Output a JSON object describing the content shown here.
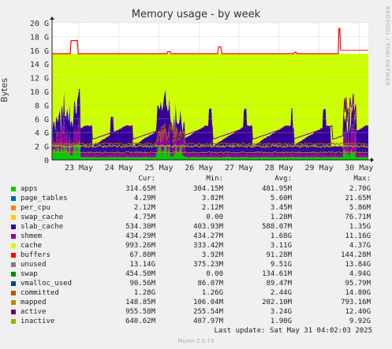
{
  "chart_data": {
    "type": "area",
    "title": "Memory usage - by week",
    "ylabel": "Bytes",
    "ylim": [
      0,
      20
    ],
    "yticks": [
      "0",
      "2 G",
      "4 G",
      "6 G",
      "8 G",
      "10 G",
      "12 G",
      "14 G",
      "16 G",
      "18 G",
      "20 G"
    ],
    "xticks": [
      "23 May",
      "24 May",
      "25 May",
      "26 May",
      "27 May",
      "28 May",
      "29 May",
      "30 May"
    ],
    "grid": true,
    "series": [
      {
        "name": "apps",
        "color": "#00cc00"
      },
      {
        "name": "page_tables",
        "color": "#0066b3"
      },
      {
        "name": "per_cpu",
        "color": "#ff8000"
      },
      {
        "name": "swap_cache",
        "color": "#ffcc00"
      },
      {
        "name": "slab_cache",
        "color": "#330099"
      },
      {
        "name": "shmem",
        "color": "#990099"
      },
      {
        "name": "cache",
        "color": "#ccff00"
      },
      {
        "name": "buffers",
        "color": "#ff0000"
      },
      {
        "name": "unused",
        "color": "#808080"
      },
      {
        "name": "swap",
        "color": "#008f00"
      },
      {
        "name": "vmalloc_used",
        "color": "#00487d"
      },
      {
        "name": "committed",
        "color": "#b35a00"
      },
      {
        "name": "mapped",
        "color": "#b38f00"
      },
      {
        "name": "active",
        "color": "#6b006b"
      },
      {
        "name": "inactive",
        "color": "#8fb300"
      }
    ]
  },
  "side_text": "RRDTOOL / TOBI OETIKER",
  "legend": {
    "headers": {
      "cur": "Cur:",
      "min": "Min:",
      "avg": "Avg:",
      "max": "Max:"
    },
    "rows": [
      {
        "name": "apps",
        "cur": "314.65M",
        "min": "304.15M",
        "avg": "481.95M",
        "max": "2.70G",
        "color": "#00cc00"
      },
      {
        "name": "page_tables",
        "cur": "4.29M",
        "min": "3.82M",
        "avg": "5.60M",
        "max": "21.65M",
        "color": "#0066b3"
      },
      {
        "name": "per_cpu",
        "cur": "2.12M",
        "min": "2.12M",
        "avg": "3.45M",
        "max": "5.86M",
        "color": "#ff8000"
      },
      {
        "name": "swap_cache",
        "cur": "4.75M",
        "min": "0.00",
        "avg": "1.28M",
        "max": "76.71M",
        "color": "#ffcc00"
      },
      {
        "name": "slab_cache",
        "cur": "534.30M",
        "min": "403.93M",
        "avg": "588.07M",
        "max": "1.35G",
        "color": "#330099"
      },
      {
        "name": "shmem",
        "cur": "434.29M",
        "min": "434.27M",
        "avg": "1.68G",
        "max": "11.16G",
        "color": "#990099"
      },
      {
        "name": "cache",
        "cur": "993.26M",
        "min": "333.42M",
        "avg": "3.11G",
        "max": "4.37G",
        "color": "#ccff00"
      },
      {
        "name": "buffers",
        "cur": "67.80M",
        "min": "3.92M",
        "avg": "91.28M",
        "max": "144.28M",
        "color": "#ff0000"
      },
      {
        "name": "unused",
        "cur": "13.14G",
        "min": "375.23M",
        "avg": "9.51G",
        "max": "13.84G",
        "color": "#808080"
      },
      {
        "name": "swap",
        "cur": "454.50M",
        "min": "0.00",
        "avg": "134.61M",
        "max": "4.94G",
        "color": "#008f00"
      },
      {
        "name": "vmalloc_used",
        "cur": "90.56M",
        "min": "86.07M",
        "avg": "89.47M",
        "max": "95.79M",
        "color": "#00487d"
      },
      {
        "name": "committed",
        "cur": "1.28G",
        "min": "1.26G",
        "avg": "2.44G",
        "max": "14.80G",
        "color": "#b35a00"
      },
      {
        "name": "mapped",
        "cur": "148.85M",
        "min": "106.04M",
        "avg": "202.10M",
        "max": "793.16M",
        "color": "#b38f00"
      },
      {
        "name": "active",
        "cur": "955.58M",
        "min": "255.54M",
        "avg": "3.24G",
        "max": "12.40G",
        "color": "#6b006b"
      },
      {
        "name": "inactive",
        "cur": "640.62M",
        "min": "407.97M",
        "avg": "1.90G",
        "max": "9.92G",
        "color": "#8fb300"
      }
    ]
  },
  "footer": "Last update: Sat May 31 04:02:03 2025",
  "munin": "Munin 2.0.73"
}
